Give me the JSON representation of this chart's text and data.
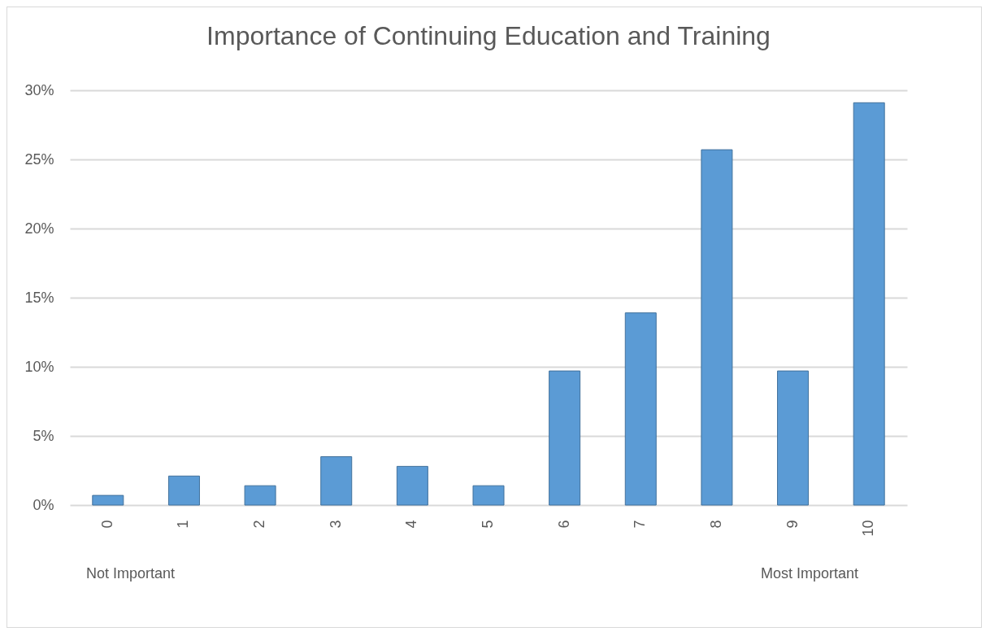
{
  "chart_data": {
    "type": "bar",
    "title": "Importance of Continuing Education and Training",
    "categories": [
      "0",
      "1",
      "2",
      "3",
      "4",
      "5",
      "6",
      "7",
      "8",
      "9",
      "10"
    ],
    "values": [
      0.7,
      2.1,
      1.4,
      3.5,
      2.8,
      1.4,
      9.7,
      13.9,
      25.7,
      9.7,
      29.1
    ],
    "color": "#5b9bd5",
    "ylim": [
      0,
      30
    ],
    "yticks": [
      {
        "value": 0,
        "label": "0%"
      },
      {
        "value": 5,
        "label": "5%"
      },
      {
        "value": 10,
        "label": "10%"
      },
      {
        "value": 15,
        "label": "15%"
      },
      {
        "value": 20,
        "label": "20%"
      },
      {
        "value": 25,
        "label": "25%"
      },
      {
        "value": 30,
        "label": "30%"
      }
    ],
    "grid": "y",
    "annotations": [
      "Not Important",
      "Most Important"
    ]
  }
}
